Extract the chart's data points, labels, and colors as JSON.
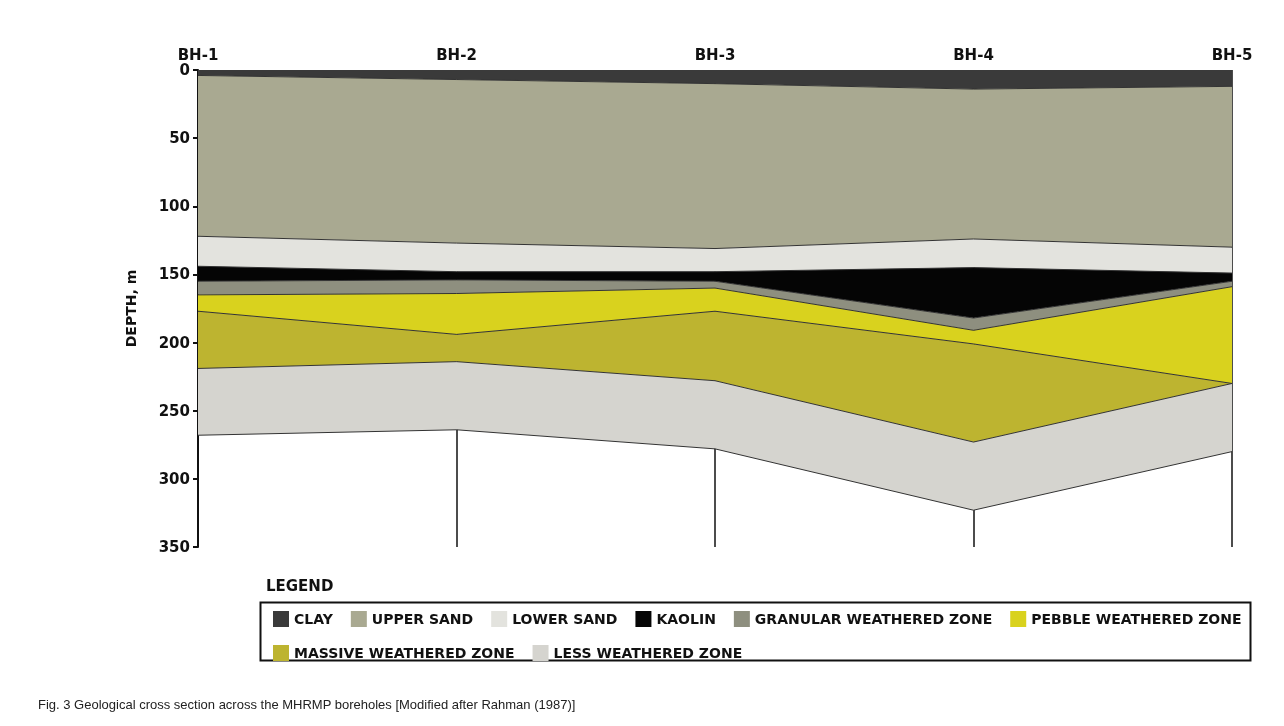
{
  "chart_data": {
    "type": "area",
    "stacked": true,
    "categories": [
      "BH-1",
      "BH-2",
      "BH-3",
      "BH-4",
      "BH-5"
    ],
    "ylabel": "DEPTH, m",
    "ylim": [
      350,
      0
    ],
    "yticks": [
      0,
      50,
      100,
      150,
      200,
      250,
      300,
      350
    ],
    "grid": "x",
    "legend": "bottom",
    "legend_title": "LEGEND",
    "marker": "none",
    "annotations": [
      "Fig. 3 Geological cross section across the MHRMP boreholes [Modified after Rahman (1987)]"
    ],
    "series": [
      {
        "name": "CLAY",
        "color": "#3a3a3a",
        "values": [
          4,
          7,
          10,
          14,
          12
        ]
      },
      {
        "name": "UPPER SAND",
        "color": "#a9a991",
        "values": [
          118,
          120,
          121,
          110,
          118
        ]
      },
      {
        "name": "LOWER SAND",
        "color": "#e3e3de",
        "values": [
          22,
          21,
          17,
          21,
          19
        ]
      },
      {
        "name": "KAOLIN",
        "color": "#050505",
        "values": [
          11,
          6,
          7,
          37,
          6
        ]
      },
      {
        "name": "GRANULAR WEATHERED ZONE",
        "color": "#8e8f7f",
        "values": [
          10,
          10,
          5,
          9,
          4
        ]
      },
      {
        "name": "PEBBLE WEATHERED ZONE",
        "color": "#d9d21e",
        "values": [
          12,
          30,
          17,
          10,
          71
        ]
      },
      {
        "name": "MASSIVE WEATHERED ZONE",
        "color": "#bdb430",
        "values": [
          42,
          20,
          51,
          72,
          0
        ]
      },
      {
        "name": "LESS WEATHERED ZONE",
        "color": "#d5d4cf",
        "values": [
          49,
          50,
          50,
          50,
          50
        ]
      }
    ]
  }
}
